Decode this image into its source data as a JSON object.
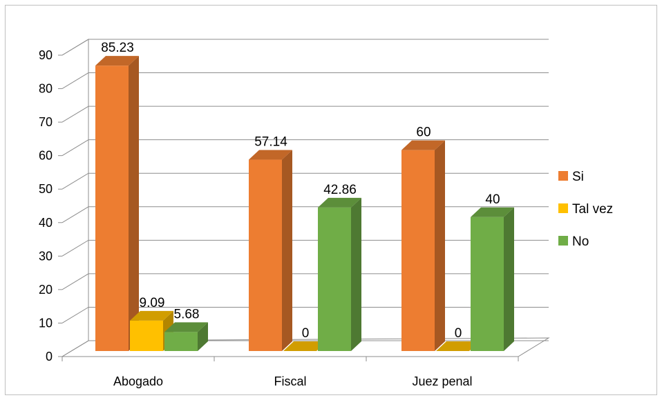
{
  "chart_data": {
    "type": "bar",
    "categories": [
      "Abogado",
      "Fiscal",
      "Juez penal"
    ],
    "series": [
      {
        "name": "Si",
        "values": [
          85.23,
          57.14,
          60
        ],
        "color": "#ED7D31"
      },
      {
        "name": "Tal vez",
        "values": [
          9.09,
          0,
          0
        ],
        "color": "#FFC000"
      },
      {
        "name": "No",
        "values": [
          5.68,
          42.86,
          40
        ],
        "color": "#70AD47"
      }
    ],
    "y_ticks": [
      "0",
      "10",
      "20",
      "30",
      "40",
      "50",
      "60",
      "70",
      "80",
      "90"
    ],
    "ylim": [
      0,
      90
    ],
    "grid": true,
    "legend_position": "right",
    "three_d": true
  }
}
